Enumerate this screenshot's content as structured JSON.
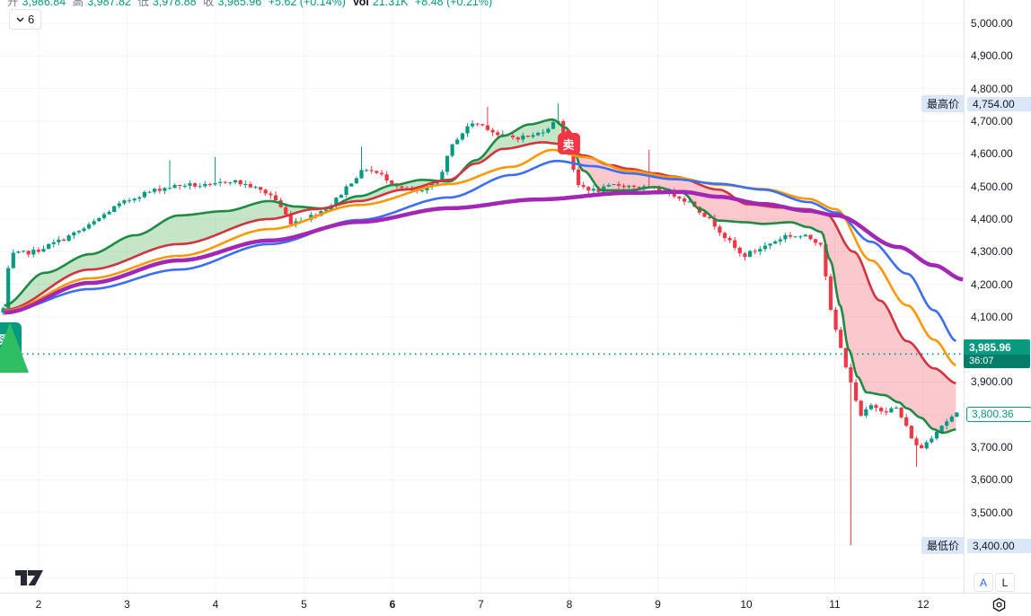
{
  "legend": {
    "collapse_button": {
      "count": "6"
    },
    "ohlc": [
      {
        "label": "开",
        "value": "3,986.84"
      },
      {
        "label": "高",
        "value": "3,987.82"
      },
      {
        "label": "低",
        "value": "3,978.88"
      },
      {
        "label": "收",
        "value": "3,985.96"
      }
    ],
    "change": "+5.62 (+0.14%)",
    "vol_label": "Vol",
    "vol_value": "21.31K",
    "vol_change": "+8.48 (+0.21%)"
  },
  "markers": {
    "sell": {
      "label": "卖",
      "t": 7.99,
      "price": 4630
    },
    "buy": {
      "label": "买",
      "t": 1.62,
      "price": 3985
    }
  },
  "price_axis": {
    "highest": {
      "tag": "最高价",
      "value": "4,754.00",
      "price": 4754
    },
    "lowest": {
      "tag": "最低价",
      "value": "3,400.00",
      "price": 3400
    },
    "current": {
      "value": "3,985.96",
      "countdown": "36:07",
      "price": 3985.96
    },
    "last": {
      "value": "3,800.36",
      "price": 3800.36
    },
    "buttons": {
      "auto": "A",
      "log": "L"
    }
  },
  "time_axis": {
    "ticks": [
      {
        "label": "2",
        "t": 2,
        "bold": false
      },
      {
        "label": "3",
        "t": 3,
        "bold": false
      },
      {
        "label": "4",
        "t": 4,
        "bold": false
      },
      {
        "label": "5",
        "t": 5,
        "bold": false
      },
      {
        "label": "6",
        "t": 6,
        "bold": true
      },
      {
        "label": "7",
        "t": 7,
        "bold": false
      },
      {
        "label": "8",
        "t": 8,
        "bold": false
      },
      {
        "label": "9",
        "t": 9,
        "bold": false
      },
      {
        "label": "10",
        "t": 10,
        "bold": false
      },
      {
        "label": "11",
        "t": 11,
        "bold": false
      },
      {
        "label": "12",
        "t": 12,
        "bold": false
      }
    ]
  },
  "colors": {
    "up": "#089981",
    "down": "#f23645",
    "ma_green": "#1f8a43",
    "ma_crimson": "#d1333f",
    "ma_orange": "#ff9800",
    "ma_blue": "#3c6ef5",
    "ma_purple": "#a127b4",
    "fill_green": "rgba(76,175,80,0.32)",
    "fill_red": "rgba(242,54,69,0.27)",
    "grid": "#f0f3fa",
    "axis_border": "#e0e3eb",
    "text": "#131722",
    "teal": "#089981",
    "highlight_bg": "#dbe7f8",
    "buy_arrow": "#2fbe62"
  },
  "chart_data": {
    "type": "candlestick",
    "x_axis": {
      "label": "day of month",
      "ticks": [
        2,
        3,
        4,
        5,
        6,
        7,
        8,
        9,
        10,
        11,
        12
      ],
      "visible_t_range": [
        1.56,
        12.83
      ]
    },
    "y_axis": {
      "tick_step": 100,
      "ticks": [
        3400,
        3500,
        3600,
        3700,
        3800,
        3900,
        4000,
        4100,
        4200,
        4300,
        4400,
        4500,
        4600,
        4700,
        4800,
        4900,
        5000
      ]
    },
    "key_levels": {
      "highest": 4754.0,
      "lowest": 3400.0,
      "current_price": 3985.96,
      "last_candle_close": 3800.36
    },
    "candles": {
      "count": 190,
      "t_range": [
        1.6,
        12.38
      ],
      "seed": 7,
      "close_noise": 14,
      "wick_extra": 12,
      "close_anchors": [
        [
          1.6,
          4125
        ],
        [
          1.68,
          4290
        ],
        [
          1.95,
          4300
        ],
        [
          2.25,
          4335
        ],
        [
          2.55,
          4375
        ],
        [
          2.85,
          4435
        ],
        [
          3.15,
          4475
        ],
        [
          3.4,
          4495
        ],
        [
          3.65,
          4505
        ],
        [
          3.95,
          4500
        ],
        [
          4.15,
          4520
        ],
        [
          4.4,
          4500
        ],
        [
          4.65,
          4470
        ],
        [
          4.85,
          4390
        ],
        [
          5.05,
          4405
        ],
        [
          5.3,
          4440
        ],
        [
          5.55,
          4520
        ],
        [
          5.7,
          4555
        ],
        [
          5.9,
          4530
        ],
        [
          6.1,
          4495
        ],
        [
          6.3,
          4480
        ],
        [
          6.5,
          4510
        ],
        [
          6.7,
          4640
        ],
        [
          6.9,
          4695
        ],
        [
          7.05,
          4685
        ],
        [
          7.2,
          4655
        ],
        [
          7.4,
          4650
        ],
        [
          7.6,
          4655
        ],
        [
          7.75,
          4680
        ],
        [
          7.88,
          4705
        ],
        [
          7.98,
          4620
        ],
        [
          8.08,
          4505
        ],
        [
          8.3,
          4485
        ],
        [
          8.52,
          4505
        ],
        [
          8.75,
          4500
        ],
        [
          8.95,
          4490
        ],
        [
          9.15,
          4480
        ],
        [
          9.4,
          4445
        ],
        [
          9.65,
          4380
        ],
        [
          9.95,
          4285
        ],
        [
          10.2,
          4315
        ],
        [
          10.45,
          4350
        ],
        [
          10.68,
          4345
        ],
        [
          10.85,
          4325
        ],
        [
          10.95,
          4120
        ],
        [
          11.08,
          3990
        ],
        [
          11.18,
          3905
        ],
        [
          11.28,
          3790
        ],
        [
          11.42,
          3830
        ],
        [
          11.56,
          3812
        ],
        [
          11.7,
          3820
        ],
        [
          11.83,
          3750
        ],
        [
          11.95,
          3690
        ],
        [
          12.06,
          3722
        ],
        [
          12.18,
          3762
        ],
        [
          12.3,
          3788
        ],
        [
          12.38,
          3800
        ]
      ],
      "special_wicks": [
        {
          "t": 3.47,
          "high": 4580
        },
        {
          "t": 4.0,
          "high": 4590
        },
        {
          "t": 5.66,
          "high": 4622
        },
        {
          "t": 7.07,
          "high": 4744
        },
        {
          "t": 7.87,
          "high": 4754
        },
        {
          "t": 8.92,
          "high": 4612
        },
        {
          "t": 11.19,
          "low": 3400
        },
        {
          "t": 11.95,
          "low": 3640
        }
      ]
    },
    "overlays": [
      {
        "name": "ma-fast-green",
        "color_key": "ma_green",
        "width": 2.6,
        "points": [
          [
            1.61,
            4135
          ],
          [
            2.07,
            4235
          ],
          [
            2.58,
            4292
          ],
          [
            3.09,
            4350
          ],
          [
            3.59,
            4411
          ],
          [
            4.1,
            4424
          ],
          [
            4.61,
            4455
          ],
          [
            4.91,
            4438
          ],
          [
            5.22,
            4432
          ],
          [
            5.62,
            4470
          ],
          [
            6.03,
            4505
          ],
          [
            6.33,
            4520
          ],
          [
            6.64,
            4515
          ],
          [
            6.94,
            4580
          ],
          [
            7.25,
            4655
          ],
          [
            7.55,
            4690
          ],
          [
            7.81,
            4705
          ],
          [
            7.96,
            4680
          ],
          [
            8.16,
            4548
          ],
          [
            8.37,
            4488
          ],
          [
            8.67,
            4488
          ],
          [
            8.97,
            4498
          ],
          [
            9.28,
            4480
          ],
          [
            9.48,
            4430
          ],
          [
            9.69,
            4395
          ],
          [
            9.99,
            4390
          ],
          [
            10.19,
            4385
          ],
          [
            10.5,
            4390
          ],
          [
            10.7,
            4375
          ],
          [
            10.85,
            4360
          ],
          [
            10.95,
            4273
          ],
          [
            11.06,
            4135
          ],
          [
            11.16,
            3998
          ],
          [
            11.26,
            3915
          ],
          [
            11.36,
            3868
          ],
          [
            11.56,
            3860
          ],
          [
            11.72,
            3838
          ],
          [
            11.82,
            3819
          ],
          [
            11.97,
            3791
          ],
          [
            12.12,
            3755
          ],
          [
            12.22,
            3744
          ],
          [
            12.38,
            3755
          ]
        ]
      },
      {
        "name": "ma-crimson",
        "color_key": "ma_crimson",
        "width": 2.6,
        "points": [
          [
            1.61,
            4121
          ],
          [
            2.58,
            4245
          ],
          [
            3.59,
            4323
          ],
          [
            4.61,
            4400
          ],
          [
            5.12,
            4430
          ],
          [
            5.62,
            4455
          ],
          [
            6.13,
            4490
          ],
          [
            6.64,
            4520
          ],
          [
            6.94,
            4570
          ],
          [
            7.25,
            4615
          ],
          [
            7.7,
            4635
          ],
          [
            7.91,
            4630
          ],
          [
            8.16,
            4595
          ],
          [
            8.47,
            4565
          ],
          [
            8.67,
            4554
          ],
          [
            8.97,
            4540
          ],
          [
            9.18,
            4530
          ],
          [
            9.69,
            4490
          ],
          [
            10.02,
            4445
          ],
          [
            10.4,
            4435
          ],
          [
            10.7,
            4430
          ],
          [
            10.9,
            4415
          ],
          [
            11.21,
            4300
          ],
          [
            11.51,
            4150
          ],
          [
            11.82,
            4025
          ],
          [
            12.12,
            3942
          ],
          [
            12.38,
            3896
          ]
        ]
      },
      {
        "name": "ma-orange",
        "color_key": "ma_orange",
        "width": 2.6,
        "points": [
          [
            1.61,
            4118
          ],
          [
            2.58,
            4218
          ],
          [
            3.59,
            4287
          ],
          [
            4.61,
            4369
          ],
          [
            5.62,
            4443
          ],
          [
            6.64,
            4507
          ],
          [
            7.35,
            4560
          ],
          [
            7.81,
            4612
          ],
          [
            8.16,
            4590
          ],
          [
            8.67,
            4548
          ],
          [
            9.18,
            4528
          ],
          [
            9.69,
            4505
          ],
          [
            10.19,
            4492
          ],
          [
            10.7,
            4462
          ],
          [
            11.01,
            4430
          ],
          [
            11.41,
            4273
          ],
          [
            11.82,
            4135
          ],
          [
            12.12,
            4030
          ],
          [
            12.38,
            3951
          ]
        ]
      },
      {
        "name": "ma-blue",
        "color_key": "ma_blue",
        "width": 2.6,
        "points": [
          [
            1.61,
            4116
          ],
          [
            2.58,
            4185
          ],
          [
            3.59,
            4245
          ],
          [
            4.61,
            4323
          ],
          [
            5.62,
            4397
          ],
          [
            6.64,
            4466
          ],
          [
            7.35,
            4535
          ],
          [
            7.86,
            4578
          ],
          [
            8.26,
            4562
          ],
          [
            8.67,
            4540
          ],
          [
            9.18,
            4522
          ],
          [
            9.69,
            4508
          ],
          [
            10.19,
            4490
          ],
          [
            10.7,
            4452
          ],
          [
            11.01,
            4420
          ],
          [
            11.41,
            4330
          ],
          [
            11.82,
            4232
          ],
          [
            12.12,
            4120
          ],
          [
            12.38,
            4025
          ]
        ]
      },
      {
        "name": "ma-purple",
        "color_key": "ma_purple",
        "width": 4.5,
        "points": [
          [
            1.61,
            4113
          ],
          [
            2.58,
            4204
          ],
          [
            3.59,
            4273
          ],
          [
            4.61,
            4334
          ],
          [
            5.62,
            4391
          ],
          [
            6.64,
            4433
          ],
          [
            7.65,
            4460
          ],
          [
            8.67,
            4480
          ],
          [
            9.28,
            4483
          ],
          [
            9.69,
            4468
          ],
          [
            10.19,
            4446
          ],
          [
            10.7,
            4425
          ],
          [
            11.01,
            4411
          ],
          [
            11.72,
            4314
          ],
          [
            12.12,
            4258
          ],
          [
            12.45,
            4215
          ]
        ]
      }
    ],
    "ribbon": {
      "upper": "ma-fast-green",
      "lower": "ma-crimson"
    }
  }
}
